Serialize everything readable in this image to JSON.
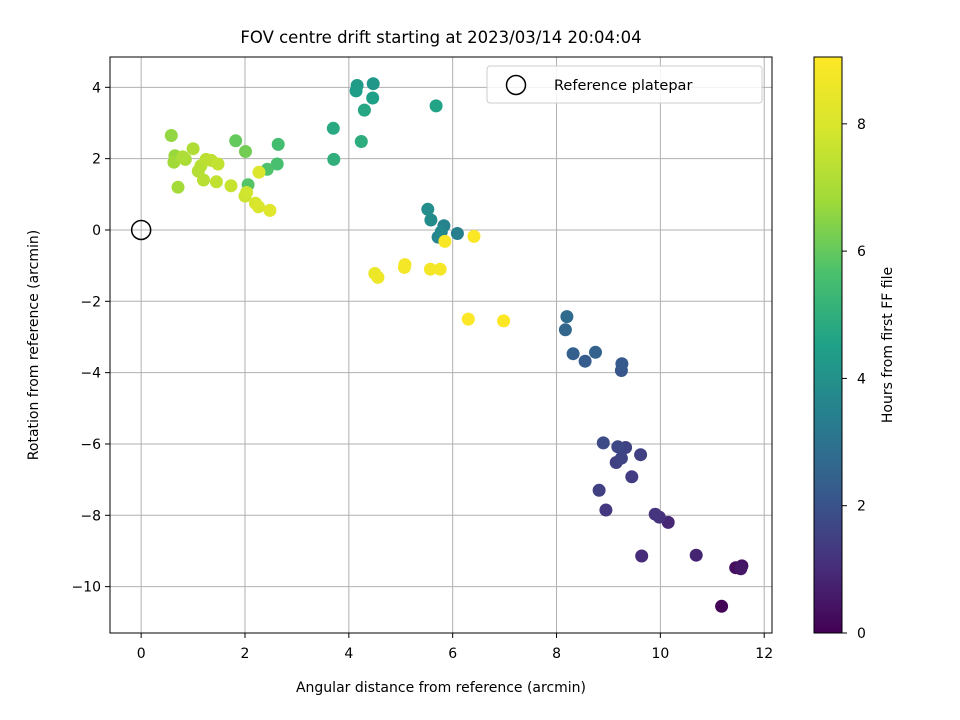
{
  "chart_data": {
    "type": "scatter",
    "title": "FOV centre drift starting at 2023/03/14 20:04:04",
    "xlabel": "Angular distance from reference (arcmin)",
    "ylabel": "Rotation from reference (arcmin)",
    "colorbar_label": "Hours from first FF file",
    "xlim": [
      -0.6,
      12.15
    ],
    "ylim": [
      -11.3,
      4.85
    ],
    "clim": [
      0,
      9.05
    ],
    "colormap": "viridis",
    "grid": true,
    "legend_placement": "top-right",
    "x_ticks": [
      "0",
      "2",
      "4",
      "6",
      "8",
      "10",
      "12"
    ],
    "y_ticks": [
      "−10",
      "−8",
      "−6",
      "−4",
      "−2",
      "0",
      "2",
      "4"
    ],
    "colorbar_ticks": [
      "0",
      "2",
      "4",
      "6",
      "8"
    ],
    "reference": {
      "name": "Reference platepar",
      "x": 0,
      "y": 0
    },
    "points": [
      {
        "x": 11.18,
        "y": -10.55,
        "t": 0.1
      },
      {
        "x": 11.45,
        "y": -9.47,
        "t": 0.3
      },
      {
        "x": 11.57,
        "y": -9.42,
        "t": 0.4
      },
      {
        "x": 11.55,
        "y": -9.5,
        "t": 0.5
      },
      {
        "x": 10.69,
        "y": -9.12,
        "t": 0.8
      },
      {
        "x": 9.64,
        "y": -9.14,
        "t": 1.0
      },
      {
        "x": 10.15,
        "y": -8.2,
        "t": 0.9
      },
      {
        "x": 9.98,
        "y": -8.05,
        "t": 1.1
      },
      {
        "x": 9.9,
        "y": -7.97,
        "t": 1.2
      },
      {
        "x": 8.95,
        "y": -7.85,
        "t": 1.3
      },
      {
        "x": 8.82,
        "y": -7.3,
        "t": 1.5
      },
      {
        "x": 9.45,
        "y": -6.92,
        "t": 1.4
      },
      {
        "x": 9.15,
        "y": -6.52,
        "t": 1.5
      },
      {
        "x": 9.25,
        "y": -6.4,
        "t": 1.6
      },
      {
        "x": 9.62,
        "y": -6.3,
        "t": 1.5
      },
      {
        "x": 9.33,
        "y": -6.1,
        "t": 1.6
      },
      {
        "x": 9.18,
        "y": -6.08,
        "t": 1.7
      },
      {
        "x": 8.9,
        "y": -5.97,
        "t": 1.8
      },
      {
        "x": 9.25,
        "y": -3.94,
        "t": 2.1
      },
      {
        "x": 9.26,
        "y": -3.75,
        "t": 2.2
      },
      {
        "x": 8.55,
        "y": -3.68,
        "t": 2.3
      },
      {
        "x": 8.32,
        "y": -3.47,
        "t": 2.4
      },
      {
        "x": 8.75,
        "y": -3.43,
        "t": 2.5
      },
      {
        "x": 8.17,
        "y": -2.8,
        "t": 2.6
      },
      {
        "x": 8.2,
        "y": -2.43,
        "t": 2.7
      },
      {
        "x": 6.09,
        "y": -0.1,
        "t": 3.4
      },
      {
        "x": 5.83,
        "y": 0.12,
        "t": 3.5
      },
      {
        "x": 5.72,
        "y": -0.2,
        "t": 3.6
      },
      {
        "x": 5.78,
        "y": -0.05,
        "t": 3.7
      },
      {
        "x": 5.58,
        "y": 0.28,
        "t": 3.8
      },
      {
        "x": 5.52,
        "y": 0.58,
        "t": 3.9
      },
      {
        "x": 5.68,
        "y": 3.48,
        "t": 4.6
      },
      {
        "x": 4.47,
        "y": 4.1,
        "t": 4.2
      },
      {
        "x": 4.16,
        "y": 4.05,
        "t": 4.3
      },
      {
        "x": 4.14,
        "y": 3.9,
        "t": 4.4
      },
      {
        "x": 4.46,
        "y": 3.7,
        "t": 4.5
      },
      {
        "x": 4.3,
        "y": 3.36,
        "t": 4.7
      },
      {
        "x": 3.7,
        "y": 2.85,
        "t": 4.8
      },
      {
        "x": 4.24,
        "y": 2.48,
        "t": 4.9
      },
      {
        "x": 3.71,
        "y": 1.98,
        "t": 5.0
      },
      {
        "x": 2.64,
        "y": 2.4,
        "t": 5.5
      },
      {
        "x": 2.62,
        "y": 1.85,
        "t": 5.6
      },
      {
        "x": 2.43,
        "y": 1.7,
        "t": 5.7
      },
      {
        "x": 2.06,
        "y": 1.27,
        "t": 5.8
      },
      {
        "x": 1.82,
        "y": 2.5,
        "t": 6.0
      },
      {
        "x": 2.01,
        "y": 2.2,
        "t": 6.2
      },
      {
        "x": 0.58,
        "y": 2.65,
        "t": 6.6
      },
      {
        "x": 0.65,
        "y": 2.08,
        "t": 6.7
      },
      {
        "x": 0.63,
        "y": 1.9,
        "t": 6.8
      },
      {
        "x": 0.71,
        "y": 1.2,
        "t": 6.9
      },
      {
        "x": 0.85,
        "y": 1.98,
        "t": 7.0
      },
      {
        "x": 0.8,
        "y": 2.05,
        "t": 7.05
      },
      {
        "x": 1.0,
        "y": 2.28,
        "t": 7.1
      },
      {
        "x": 1.1,
        "y": 1.65,
        "t": 7.2
      },
      {
        "x": 1.15,
        "y": 1.8,
        "t": 7.25
      },
      {
        "x": 1.2,
        "y": 1.4,
        "t": 7.3
      },
      {
        "x": 1.25,
        "y": 1.98,
        "t": 7.35
      },
      {
        "x": 1.35,
        "y": 1.95,
        "t": 7.4
      },
      {
        "x": 1.45,
        "y": 1.35,
        "t": 7.45
      },
      {
        "x": 1.48,
        "y": 1.85,
        "t": 7.5
      },
      {
        "x": 1.73,
        "y": 1.24,
        "t": 7.6
      },
      {
        "x": 2.0,
        "y": 0.95,
        "t": 7.7
      },
      {
        "x": 2.03,
        "y": 1.05,
        "t": 7.8
      },
      {
        "x": 2.2,
        "y": 0.75,
        "t": 7.9
      },
      {
        "x": 2.26,
        "y": 0.65,
        "t": 8.0
      },
      {
        "x": 2.27,
        "y": 1.62,
        "t": 8.1
      },
      {
        "x": 2.48,
        "y": 0.55,
        "t": 8.2
      },
      {
        "x": 4.5,
        "y": -1.22,
        "t": 8.5
      },
      {
        "x": 4.56,
        "y": -1.33,
        "t": 8.6
      },
      {
        "x": 5.07,
        "y": -1.05,
        "t": 8.7
      },
      {
        "x": 5.08,
        "y": -0.97,
        "t": 8.75
      },
      {
        "x": 5.57,
        "y": -1.1,
        "t": 8.8
      },
      {
        "x": 5.76,
        "y": -1.1,
        "t": 8.85
      },
      {
        "x": 5.85,
        "y": -0.32,
        "t": 8.9
      },
      {
        "x": 6.41,
        "y": -0.18,
        "t": 8.95
      },
      {
        "x": 6.3,
        "y": -2.5,
        "t": 9.0
      },
      {
        "x": 6.98,
        "y": -2.55,
        "t": 9.02
      }
    ]
  }
}
